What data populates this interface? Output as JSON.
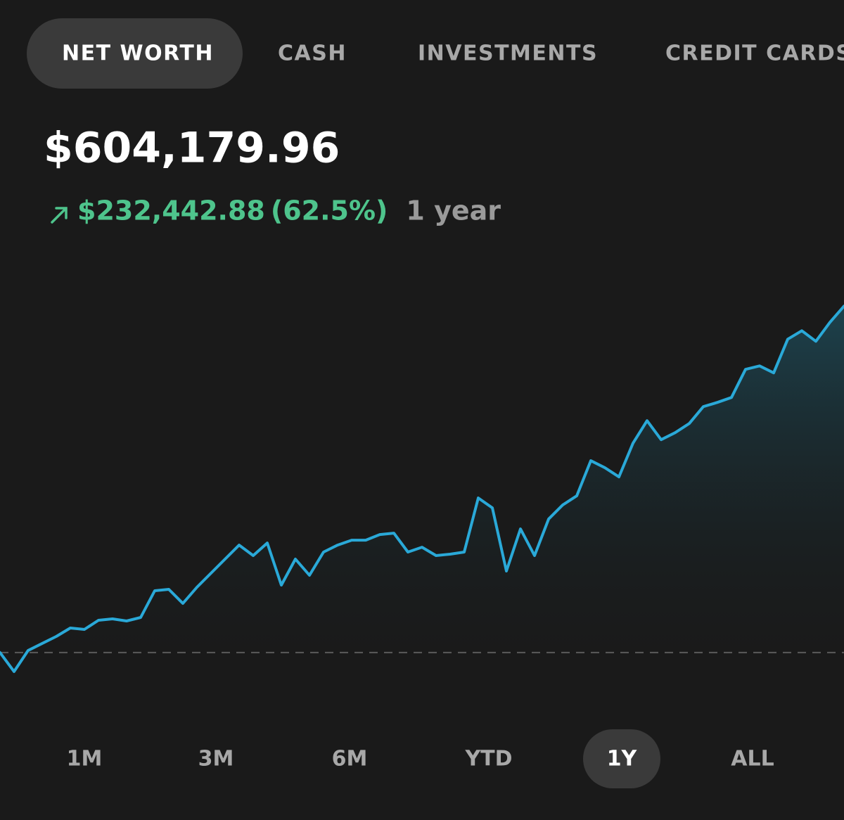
{
  "tabs": [
    "NET WORTH",
    "CASH",
    "INVESTMENTS",
    "CREDIT CARDS"
  ],
  "active_tab": 0,
  "balance": "$604,179.96",
  "change": "$232,442.88",
  "change_percent": "(62.5%)",
  "period": "1 year",
  "chart_data": {
    "type": "line",
    "color": "#2aa9d8",
    "baseline": 371737.08,
    "ylim": [
      350000,
      610000
    ],
    "values": [
      371737.08,
      359007,
      373152,
      377867,
      382582,
      388240,
      387297,
      393426,
      394369,
      392955,
      395312,
      413229,
      414172,
      404742,
      415587,
      425017,
      434447,
      443877,
      436804,
      445291,
      417001,
      434447,
      423602,
      439162,
      443877,
      447177,
      447177,
      450949,
      451892,
      439162,
      442462,
      436804,
      437747,
      439162,
      475467,
      468866,
      426431,
      454721,
      436804,
      461322,
      470752,
      476882,
      500457,
      495742,
      489612,
      512244,
      527332,
      514602,
      519317,
      525446,
      536762,
      539591,
      542892,
      561752,
      564109,
      559394,
      582026,
      587684,
      580615,
      593342,
      604179.96
    ]
  },
  "ranges": [
    "1M",
    "3M",
    "6M",
    "YTD",
    "1Y",
    "ALL"
  ],
  "active_range": 4
}
